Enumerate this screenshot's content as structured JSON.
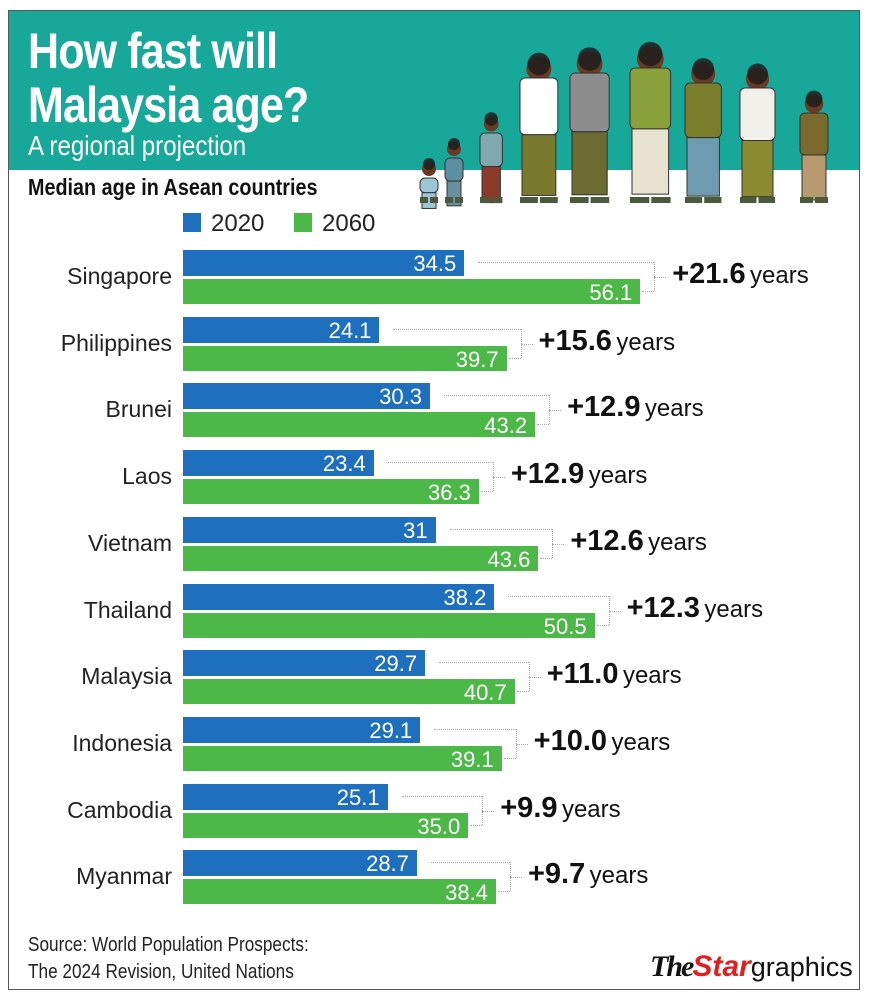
{
  "header": {
    "title_line1": "How fast will",
    "title_line2": "Malaysia age?",
    "subtitle": "A regional projection"
  },
  "logo": {
    "the": "The",
    "star": "Star",
    "graphics": "graphics"
  },
  "source": {
    "line1": "Source: World Population Prospects:",
    "line2": "The 2024 Revision, United Nations"
  },
  "chart_data": {
    "type": "bar",
    "orientation": "horizontal",
    "title": "Median age in Asean countries",
    "categories": [
      "Singapore",
      "Philippines",
      "Brunei",
      "Laos",
      "Vietnam",
      "Thailand",
      "Malaysia",
      "Indonesia",
      "Cambodia",
      "Myanmar"
    ],
    "series": [
      {
        "name": "2020",
        "color": "#1f6fbf",
        "values": [
          "34.5",
          "24.1",
          "30.3",
          "23.4",
          "31",
          "38.2",
          "29.7",
          "29.1",
          "25.1",
          "28.7"
        ]
      },
      {
        "name": "2060",
        "color": "#4cb848",
        "values": [
          "56.1",
          "39.7",
          "43.2",
          "36.3",
          "43.6",
          "50.5",
          "40.7",
          "39.1",
          "35.0",
          "38.4"
        ]
      }
    ],
    "differences": [
      "+21.6",
      "+15.6",
      "+12.9",
      "+12.9",
      "+12.6",
      "+12.3",
      "+11.0",
      "+10.0",
      "+9.9",
      "+9.7"
    ],
    "difference_unit": "years",
    "legend": "top",
    "grid": false
  }
}
